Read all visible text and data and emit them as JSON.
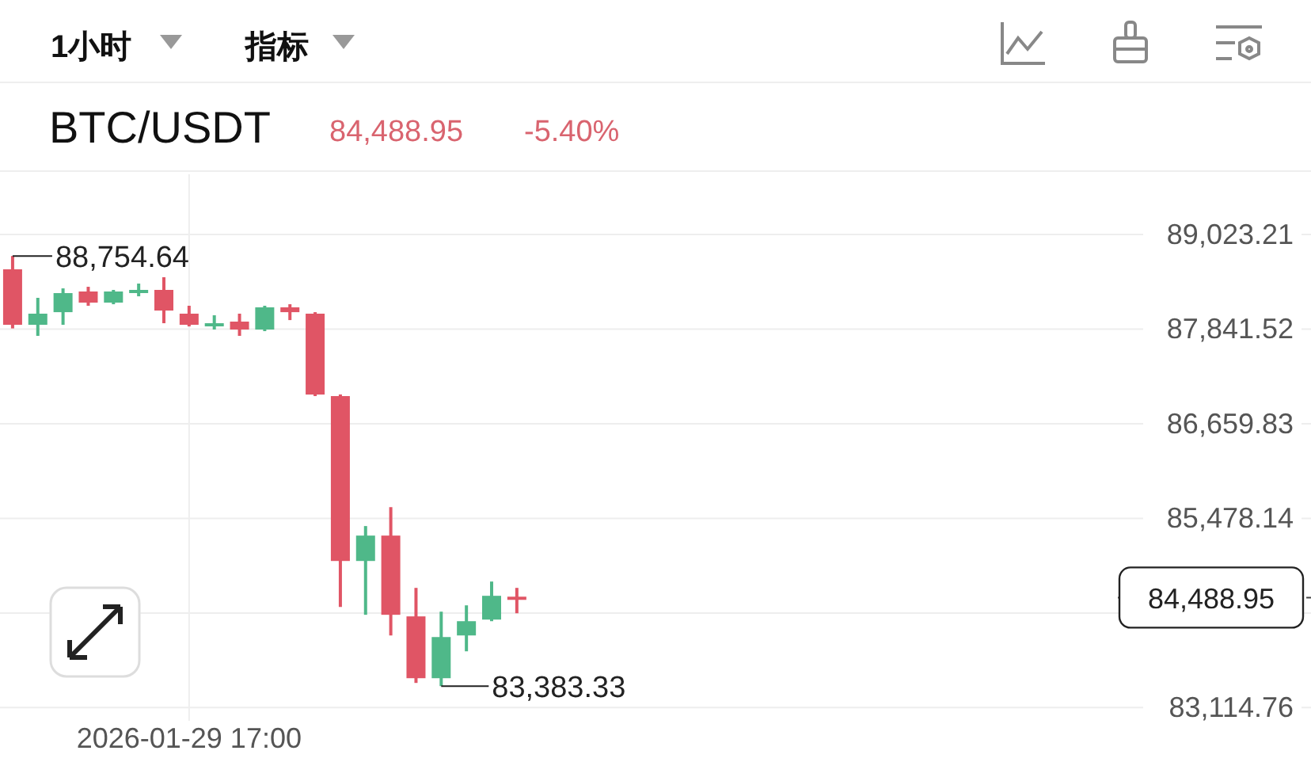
{
  "chart_data": {
    "type": "candlestick",
    "title": "BTC/USDT",
    "subtitle": "84,488.95",
    "categories": [
      null,
      null,
      null,
      null,
      null,
      null,
      null,
      "2026-01-29 17:00",
      null,
      null,
      null,
      null,
      null,
      null,
      null,
      null,
      null,
      null,
      null,
      null,
      null,
      null,
      null,
      null,
      null,
      null,
      null,
      null,
      null,
      null,
      null,
      null,
      null,
      null,
      null,
      null,
      null,
      null,
      null,
      null,
      null,
      null,
      null,
      null,
      null,
      null,
      null,
      null,
      null,
      null,
      null,
      null
    ],
    "ohlc": [
      [
        88588,
        88754.64,
        87850,
        87895
      ],
      [
        87895,
        88232,
        87757,
        88034
      ],
      [
        88053,
        88350,
        87895,
        88291
      ],
      [
        88311,
        88370,
        88133,
        88172
      ],
      [
        88172,
        88331,
        88152,
        88311
      ],
      [
        88311,
        88410,
        88251,
        88331
      ],
      [
        88331,
        88489,
        87915,
        88073
      ],
      [
        88034,
        88133,
        87875,
        87895
      ],
      [
        87895,
        88014,
        87836,
        87915
      ],
      [
        87935,
        88034,
        87757,
        87836
      ],
      [
        87836,
        88133,
        87816,
        88113
      ],
      [
        88113,
        88152,
        87954,
        88053
      ],
      [
        88034,
        88053,
        87005,
        87024
      ],
      [
        87005,
        87024,
        84372,
        84946
      ],
      [
        84946,
        85382,
        84274,
        85263
      ],
      [
        85263,
        85619,
        84016,
        84274
      ],
      [
        84254,
        84610,
        83423,
        83482
      ],
      [
        83482,
        84313,
        83383.33,
        83996
      ],
      [
        84016,
        84392,
        83818,
        84194
      ],
      [
        84214,
        84689,
        84194,
        84511
      ],
      [
        84500,
        84610,
        84293,
        84488.95
      ],
      null,
      null,
      null,
      null,
      null,
      null,
      null,
      null,
      null,
      null,
      null,
      null,
      null,
      null,
      null,
      null,
      null,
      null,
      null,
      null,
      null,
      null,
      null,
      null,
      null,
      null,
      null,
      null,
      null,
      null,
      null
    ],
    "colors": [
      "#e05565",
      "#4fb889",
      "#4fb889",
      "#e05565",
      "#4fb889",
      "#4fb889",
      "#e05565",
      "#e05565",
      "#4fb889",
      "#e05565",
      "#4fb889",
      "#e05565",
      "#e05565",
      "#e05565",
      "#4fb889",
      "#e05565",
      "#e05565",
      "#4fb889",
      "#4fb889",
      "#4fb889",
      "#e05565",
      null,
      null,
      null,
      null,
      null,
      null,
      null,
      null,
      null,
      null,
      null,
      null,
      null,
      null,
      null,
      null,
      null,
      null,
      null,
      null,
      null,
      null,
      null,
      null,
      null,
      null,
      null,
      null,
      null,
      null,
      null
    ],
    "ylim": [
      82950,
      89775
    ],
    "yticks": [
      {
        "value": 89023.21,
        "label": "89,023.21"
      },
      {
        "value": 87841.52,
        "label": "87,841.52"
      },
      {
        "value": 86659.83,
        "label": "86,659.83"
      },
      {
        "value": 85478.14,
        "label": "85,478.14"
      },
      {
        "value": 84296.45,
        "label": null
      },
      {
        "value": 83114.76,
        "label": "83,114.76"
      }
    ],
    "grid": true,
    "ref_lines": [
      {
        "axis": "y",
        "value": 84488.95,
        "label": "84,488.95",
        "line_style": "dashed",
        "color": "#444444"
      }
    ],
    "annotations": [
      "-5.40%",
      "1小时",
      "指标",
      "88,754.64",
      "83,383.33"
    ]
  }
}
